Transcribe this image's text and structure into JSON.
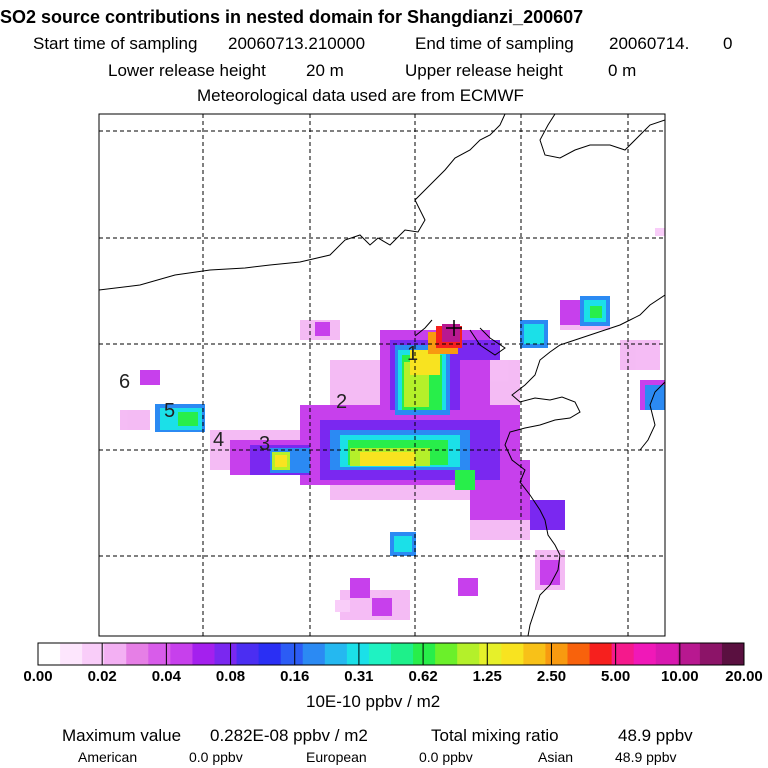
{
  "header": {
    "title": "SO2 source contributions in nested domain for Shangdianzi_200607",
    "start_label": "Start time of sampling",
    "start_value": "20060713.210000",
    "end_label": "End time of sampling",
    "end_value": "20060714.",
    "end_value2": "0",
    "lower_label": "Lower release height",
    "lower_value": "20 m",
    "upper_label": "Upper release height",
    "upper_value": "0 m",
    "meteo": "Meteorological data used are from ECMWF"
  },
  "map": {
    "trajectory_points": [
      "1",
      "2",
      "3",
      "4",
      "5",
      "6"
    ]
  },
  "colorbar": {
    "labels": [
      "0.00",
      "0.02",
      "0.04",
      "0.08",
      "0.16",
      "0.31",
      "0.62",
      "1.25",
      "2.50",
      "5.00",
      "10.00",
      "20.00"
    ],
    "unit": "10E-10 ppbv / m2",
    "colors": [
      "#ffffff",
      "#fde6fd",
      "#f9cdf9",
      "#f3b0f3",
      "#e67fe6",
      "#d85cea",
      "#c740ec",
      "#a420ee",
      "#7a28f0",
      "#4b2ef2",
      "#2a2ff4",
      "#2c5cf5",
      "#2b8af3",
      "#25b8f0",
      "#1be0e8",
      "#1ff2c2",
      "#1ef08a",
      "#28ee4a",
      "#6bf02a",
      "#b4f02a",
      "#e6f02a",
      "#f8e320",
      "#f8c118",
      "#f89a10",
      "#f8620c",
      "#f6201e",
      "#f5198c",
      "#f018b8",
      "#d818b0",
      "#b81890",
      "#8c1468",
      "#5a1040"
    ]
  },
  "footer": {
    "max_label": "Maximum value",
    "max_value": "0.282E-08 ppbv / m2",
    "total_label": "Total mixing ratio",
    "total_value": "48.9 ppbv",
    "american_label": "American",
    "american_value": "0.0 ppbv",
    "european_label": "European",
    "european_value": "0.0 ppbv",
    "asian_label": "Asian",
    "asian_value": "48.9 ppbv"
  }
}
